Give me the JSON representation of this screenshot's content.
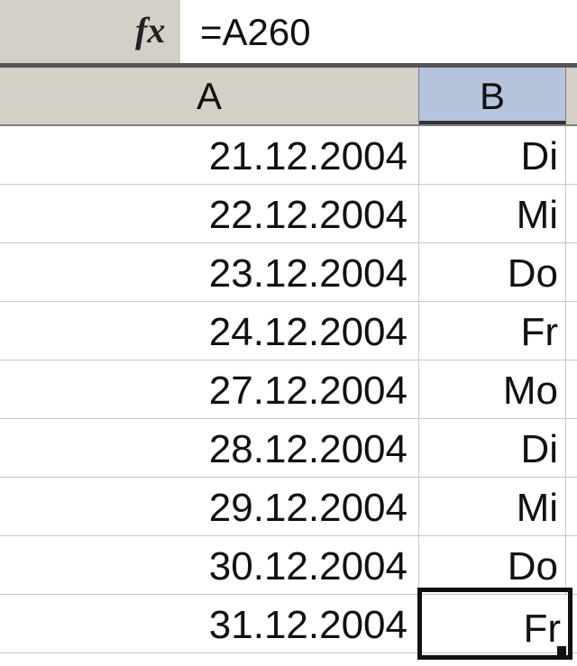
{
  "formula_bar": {
    "fx_label": "fx",
    "value": "=A260"
  },
  "columns": [
    "A",
    "B"
  ],
  "rows": [
    {
      "a": "21.12.2004",
      "b": "Di"
    },
    {
      "a": "22.12.2004",
      "b": "Mi"
    },
    {
      "a": "23.12.2004",
      "b": "Do"
    },
    {
      "a": "24.12.2004",
      "b": "Fr"
    },
    {
      "a": "27.12.2004",
      "b": "Mo"
    },
    {
      "a": "28.12.2004",
      "b": "Di"
    },
    {
      "a": "29.12.2004",
      "b": "Mi"
    },
    {
      "a": "30.12.2004",
      "b": "Do"
    },
    {
      "a": "31.12.2004",
      "b": "Fr"
    }
  ],
  "selected_cell": {
    "column": "B",
    "row_index": 8
  },
  "colors": {
    "header": "#d4d0c8",
    "selected_header": "#b6c3dc"
  }
}
